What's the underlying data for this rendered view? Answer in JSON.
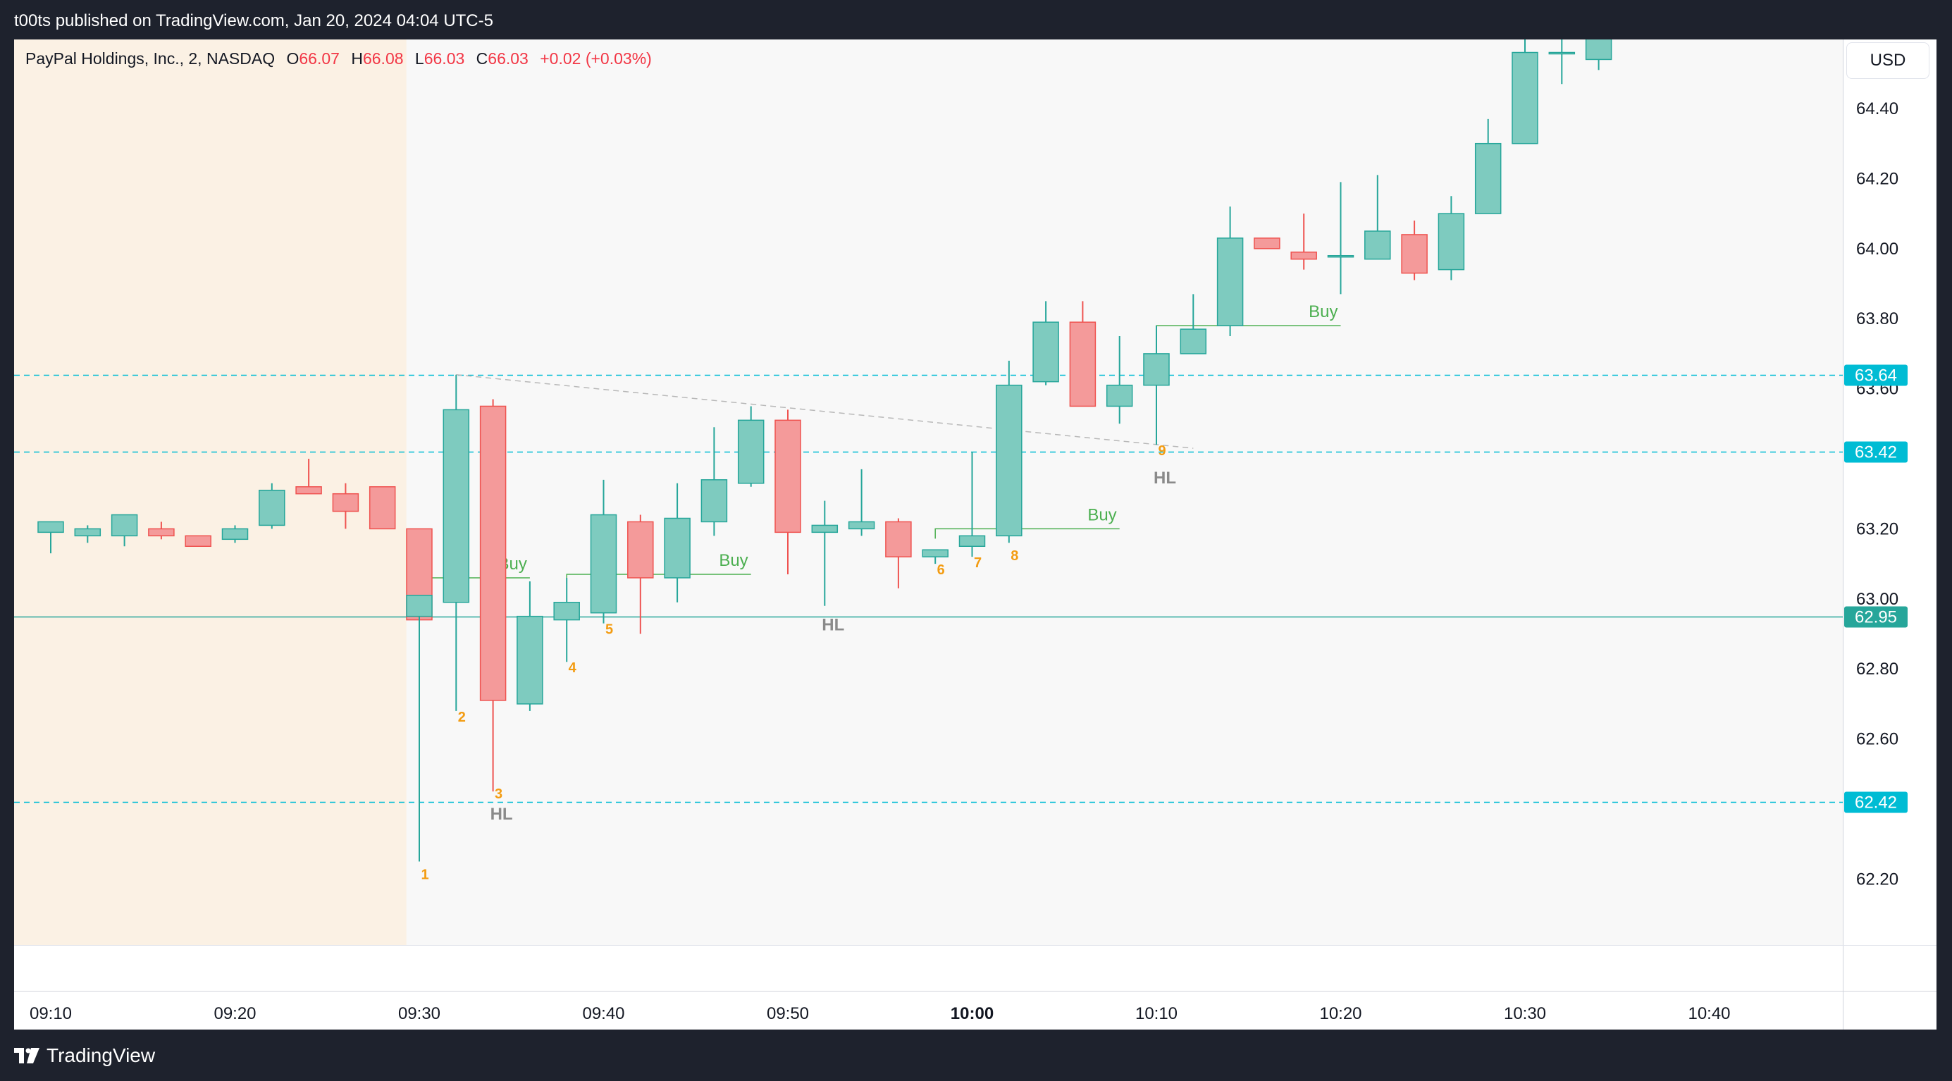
{
  "header": {
    "publish_text": "t00ts published on TradingView.com, Jan 20, 2024 04:04 UTC-5"
  },
  "legend": {
    "symbol": "PayPal Holdings, Inc., 2, NASDAQ",
    "o_label": "O",
    "o_value": "66.07",
    "h_label": "H",
    "h_value": "66.08",
    "l_label": "L",
    "l_value": "66.03",
    "c_label": "C",
    "c_value": "66.03",
    "change": "+0.02 (+0.03%)"
  },
  "currency_button": "USD",
  "footer": {
    "brand": "TradingView"
  },
  "colors": {
    "bull": "#7ecbbf",
    "bull_border": "#26a69a",
    "bear": "#f49a9a",
    "bear_border": "#ef5350",
    "level_line": "#00bcd4",
    "support_line": "#26a69a",
    "premarket_bg": "#fbf1e4",
    "chart_bg": "#f8f8f8",
    "buy_text": "#4caf50",
    "count_text": "#f39c12",
    "hl_text": "#8a8a8a"
  },
  "chart_data": {
    "type": "candlestick",
    "y_axis": {
      "ticks": [
        "64.40",
        "64.20",
        "64.00",
        "63.80",
        "63.60",
        "63.20",
        "63.00",
        "62.80",
        "62.60",
        "62.20"
      ],
      "tick_values": [
        64.4,
        64.2,
        64.0,
        63.8,
        63.6,
        63.2,
        63.0,
        62.8,
        62.6,
        62.2
      ]
    },
    "x_axis": {
      "ticks": [
        "09:10",
        "09:20",
        "09:30",
        "09:40",
        "09:50",
        "10:00",
        "10:10",
        "10:20",
        "10:30",
        "10:40"
      ],
      "tick_minutes": [
        550,
        560,
        570,
        580,
        590,
        600,
        610,
        620,
        630,
        640
      ],
      "bold_tick": "10:00"
    },
    "premarket_end_minute": 569.3,
    "candles": [
      {
        "t": 550,
        "o": 63.19,
        "h": 63.21,
        "l": 63.13,
        "c": 63.22
      },
      {
        "t": 552,
        "o": 63.18,
        "h": 63.21,
        "l": 63.16,
        "c": 63.2
      },
      {
        "t": 554,
        "o": 63.18,
        "h": 63.24,
        "l": 63.15,
        "c": 63.24
      },
      {
        "t": 556,
        "o": 63.2,
        "h": 63.22,
        "l": 63.17,
        "c": 63.18
      },
      {
        "t": 558,
        "o": 63.18,
        "h": 63.18,
        "l": 63.15,
        "c": 63.15
      },
      {
        "t": 560,
        "o": 63.17,
        "h": 63.21,
        "l": 63.16,
        "c": 63.2
      },
      {
        "t": 562,
        "o": 63.21,
        "h": 63.33,
        "l": 63.2,
        "c": 63.31
      },
      {
        "t": 564,
        "o": 63.32,
        "h": 63.4,
        "l": 63.3,
        "c": 63.3
      },
      {
        "t": 566,
        "o": 63.3,
        "h": 63.33,
        "l": 63.2,
        "c": 63.25
      },
      {
        "t": 568,
        "o": 63.32,
        "h": 63.32,
        "l": 63.2,
        "c": 63.2
      },
      {
        "t": 570,
        "o": 63.2,
        "h": 63.2,
        "l": 62.94,
        "c": 62.94
      },
      {
        "t": 570,
        "o": 62.95,
        "h": 63.01,
        "l": 62.25,
        "c": 63.01
      },
      {
        "t": 572,
        "o": 62.99,
        "h": 63.64,
        "l": 62.68,
        "c": 63.54
      },
      {
        "t": 574,
        "o": 63.55,
        "h": 63.57,
        "l": 62.45,
        "c": 62.71
      },
      {
        "t": 576,
        "o": 62.7,
        "h": 63.05,
        "l": 62.68,
        "c": 62.95
      },
      {
        "t": 578,
        "o": 62.94,
        "h": 63.06,
        "l": 62.82,
        "c": 62.99
      },
      {
        "t": 580,
        "o": 62.96,
        "h": 63.34,
        "l": 62.93,
        "c": 63.24
      },
      {
        "t": 582,
        "o": 63.22,
        "h": 63.24,
        "l": 62.9,
        "c": 63.06
      },
      {
        "t": 584,
        "o": 63.06,
        "h": 63.33,
        "l": 62.99,
        "c": 63.23
      },
      {
        "t": 586,
        "o": 63.22,
        "h": 63.49,
        "l": 63.18,
        "c": 63.34
      },
      {
        "t": 588,
        "o": 63.33,
        "h": 63.55,
        "l": 63.32,
        "c": 63.51
      },
      {
        "t": 590,
        "o": 63.51,
        "h": 63.54,
        "l": 63.07,
        "c": 63.19
      },
      {
        "t": 592,
        "o": 63.19,
        "h": 63.28,
        "l": 62.98,
        "c": 63.21
      },
      {
        "t": 594,
        "o": 63.2,
        "h": 63.37,
        "l": 63.18,
        "c": 63.22
      },
      {
        "t": 596,
        "o": 63.22,
        "h": 63.23,
        "l": 63.03,
        "c": 63.12
      },
      {
        "t": 598,
        "o": 63.12,
        "h": 63.14,
        "l": 63.1,
        "c": 63.14
      },
      {
        "t": 600,
        "o": 63.15,
        "h": 63.42,
        "l": 63.12,
        "c": 63.18
      },
      {
        "t": 602,
        "o": 63.18,
        "h": 63.68,
        "l": 63.16,
        "c": 63.61
      },
      {
        "t": 604,
        "o": 63.62,
        "h": 63.85,
        "l": 63.61,
        "c": 63.79
      },
      {
        "t": 606,
        "o": 63.79,
        "h": 63.85,
        "l": 63.55,
        "c": 63.55
      },
      {
        "t": 608,
        "o": 63.55,
        "h": 63.75,
        "l": 63.5,
        "c": 63.61
      },
      {
        "t": 610,
        "o": 63.61,
        "h": 63.78,
        "l": 63.44,
        "c": 63.7
      },
      {
        "t": 612,
        "o": 63.7,
        "h": 63.87,
        "l": 63.7,
        "c": 63.77
      },
      {
        "t": 614,
        "o": 63.78,
        "h": 64.12,
        "l": 63.75,
        "c": 64.03
      },
      {
        "t": 616,
        "o": 64.03,
        "h": 64.03,
        "l": 64.0,
        "c": 64.0
      },
      {
        "t": 618,
        "o": 63.99,
        "h": 64.1,
        "l": 63.94,
        "c": 63.97
      },
      {
        "t": 620,
        "o": 63.98,
        "h": 64.19,
        "l": 63.87,
        "c": 63.98
      },
      {
        "t": 622,
        "o": 63.97,
        "h": 64.21,
        "l": 63.97,
        "c": 64.05
      },
      {
        "t": 624,
        "o": 64.04,
        "h": 64.08,
        "l": 63.91,
        "c": 63.93
      },
      {
        "t": 626,
        "o": 63.94,
        "h": 64.15,
        "l": 63.91,
        "c": 64.1
      },
      {
        "t": 628,
        "o": 64.1,
        "h": 64.37,
        "l": 64.1,
        "c": 64.3
      },
      {
        "t": 630,
        "o": 64.3,
        "h": 64.6,
        "l": 64.3,
        "c": 64.56
      },
      {
        "t": 632,
        "o": 64.56,
        "h": 64.6,
        "l": 64.47,
        "c": 64.56
      },
      {
        "t": 634,
        "o": 64.54,
        "h": 64.6,
        "l": 64.51,
        "c": 64.6
      }
    ],
    "horizontal_levels": [
      {
        "price": 63.64,
        "label": "63.64",
        "style": "dashed",
        "color": "#00bcd4"
      },
      {
        "price": 63.42,
        "label": "63.42",
        "style": "dashed",
        "color": "#00bcd4"
      },
      {
        "price": 62.42,
        "label": "62.42",
        "style": "dashed",
        "color": "#00bcd4"
      },
      {
        "price": 62.95,
        "label": "62.95",
        "style": "solid",
        "color": "#26a69a"
      }
    ],
    "buy_signals": [
      {
        "t1": 570,
        "t2": 576,
        "price": 63.06,
        "label": "Buy"
      },
      {
        "t1": 578,
        "t2": 588,
        "price": 63.07,
        "label": "Buy"
      },
      {
        "t1": 598,
        "t2": 608,
        "price": 63.2,
        "label": "Buy"
      },
      {
        "t1": 610,
        "t2": 620,
        "price": 63.78,
        "label": "Buy"
      }
    ],
    "trendline": {
      "t1": 572,
      "p1": 63.64,
      "t2": 612,
      "p2": 63.43
    },
    "bar_counts": [
      {
        "t": 570,
        "price": 62.2,
        "label": "1"
      },
      {
        "t": 572,
        "price": 62.65,
        "label": "2"
      },
      {
        "t": 574,
        "price": 62.43,
        "label": "3"
      },
      {
        "t": 578,
        "price": 62.79,
        "label": "4"
      },
      {
        "t": 580,
        "price": 62.9,
        "label": "5"
      },
      {
        "t": 598,
        "price": 63.07,
        "label": "6"
      },
      {
        "t": 600,
        "price": 63.09,
        "label": "7"
      },
      {
        "t": 602,
        "price": 63.11,
        "label": "8"
      },
      {
        "t": 610,
        "price": 63.41,
        "label": "9"
      }
    ],
    "hl_labels": [
      {
        "t": 574,
        "price": 62.37,
        "label": "HL"
      },
      {
        "t": 592,
        "price": 62.91,
        "label": "HL"
      },
      {
        "t": 610,
        "price": 63.33,
        "label": "HL"
      }
    ]
  }
}
